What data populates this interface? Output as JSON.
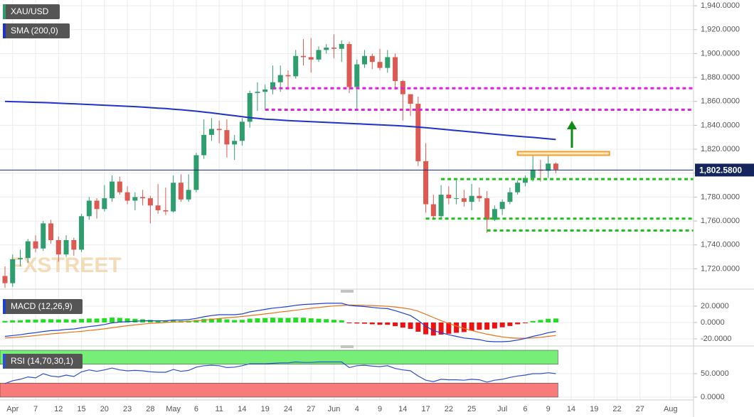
{
  "chart_data": [
    {
      "type": "candlestick",
      "title": "XAU/USD",
      "watermark": "FXSTREET",
      "categories": [
        null,
        "Apr",
        null,
        null,
        "7",
        null,
        null,
        "12",
        null,
        null,
        "15",
        null,
        null,
        "20",
        null,
        null,
        "23",
        null,
        null,
        "28",
        null,
        null,
        "May",
        null,
        null,
        "6",
        null,
        null,
        "11",
        null,
        null,
        "14",
        null,
        null,
        "19",
        null,
        null,
        "24",
        null,
        null,
        "27",
        null,
        null,
        "Jun",
        null,
        null,
        "4",
        null,
        null,
        "9",
        null,
        null,
        "14",
        null,
        null,
        "17",
        null,
        null,
        "22",
        null,
        null,
        "25",
        null,
        null,
        null,
        "Jul",
        null,
        null,
        "6",
        null,
        null,
        "9",
        null,
        null,
        "14",
        null,
        null,
        "19",
        null,
        null,
        "22",
        null,
        null,
        "27",
        null,
        null,
        null,
        "Aug",
        null
      ],
      "open": [
        1714,
        1708,
        1728,
        1729,
        1743,
        1737,
        1758,
        1744,
        1732,
        1744,
        1736,
        1764,
        1777,
        1770,
        1779,
        1793,
        1784,
        1777,
        1780,
        1779,
        1773,
        1769,
        1768,
        1792,
        1778,
        1786,
        1815,
        1832,
        1837,
        1836,
        1824,
        1827,
        1843,
        1867,
        1868,
        1870,
        1876,
        1882,
        1881,
        1898,
        1897,
        1895,
        1903,
        1905,
        1904,
        1908,
        1872,
        1891,
        1898,
        1893,
        1888,
        1897,
        1877,
        1866,
        1858,
        1810,
        1774,
        1764,
        1782,
        1779,
        1779,
        1776,
        1781,
        1779,
        1761,
        1770,
        1776,
        1784,
        1792,
        1796,
        1803,
        1802,
        1808,
        null,
        null,
        null,
        null,
        null,
        null,
        null,
        null,
        null,
        null,
        null,
        null,
        null,
        null,
        null,
        null
      ],
      "high": [
        1722,
        1732,
        1736,
        1745,
        1748,
        1760,
        1761,
        1747,
        1748,
        1746,
        1766,
        1780,
        1779,
        1790,
        1798,
        1797,
        1789,
        1784,
        1786,
        1781,
        1791,
        1788,
        1798,
        1799,
        1799,
        1817,
        1845,
        1846,
        1844,
        1845,
        1832,
        1846,
        1869,
        1876,
        1874,
        1890,
        1890,
        1886,
        1903,
        1912,
        1913,
        1906,
        1908,
        1916,
        1911,
        1910,
        1895,
        1903,
        1900,
        1904,
        1903,
        1900,
        1878,
        1866,
        1864,
        1825,
        1782,
        1790,
        1789,
        1794,
        1786,
        1791,
        1788,
        1785,
        1773,
        1778,
        1788,
        1794,
        1798,
        1815,
        1811,
        1818,
        1809,
        null,
        null,
        null,
        null,
        null,
        null,
        null,
        null,
        null,
        null,
        null,
        null,
        null,
        null,
        null,
        null
      ],
      "low": [
        1704,
        1705,
        1722,
        1725,
        1734,
        1735,
        1741,
        1726,
        1730,
        1731,
        1734,
        1761,
        1762,
        1768,
        1776,
        1782,
        1774,
        1769,
        1773,
        1758,
        1766,
        1765,
        1767,
        1776,
        1776,
        1784,
        1812,
        1827,
        1825,
        1813,
        1811,
        1823,
        1838,
        1852,
        1853,
        1866,
        1868,
        1870,
        1879,
        1890,
        1884,
        1893,
        1900,
        1896,
        1893,
        1867,
        1854,
        1888,
        1887,
        1886,
        1884,
        1870,
        1844,
        1848,
        1806,
        1767,
        1761,
        1762,
        1774,
        1774,
        1772,
        1769,
        1776,
        1750,
        1760,
        1765,
        1774,
        1782,
        1789,
        1793,
        1793,
        1796,
        1800,
        null,
        null,
        null,
        null,
        null,
        null,
        null,
        null,
        null,
        null,
        null,
        null,
        null,
        null,
        null,
        null
      ],
      "close": [
        1708,
        1728,
        1729,
        1743,
        1737,
        1758,
        1744,
        1732,
        1744,
        1736,
        1764,
        1777,
        1770,
        1779,
        1793,
        1784,
        1777,
        1780,
        1779,
        1773,
        1769,
        1768,
        1792,
        1778,
        1786,
        1815,
        1832,
        1837,
        1836,
        1824,
        1827,
        1843,
        1867,
        1868,
        1870,
        1876,
        1882,
        1881,
        1898,
        1897,
        1895,
        1903,
        1905,
        1904,
        1908,
        1872,
        1891,
        1898,
        1893,
        1888,
        1897,
        1877,
        1866,
        1858,
        1810,
        1774,
        1764,
        1782,
        1779,
        1779,
        1776,
        1781,
        1779,
        1761,
        1770,
        1776,
        1784,
        1792,
        1796,
        1803,
        1802,
        1808,
        1803,
        null,
        null,
        null,
        null,
        null,
        null,
        null,
        null,
        null,
        null,
        null,
        null,
        null,
        null,
        null,
        null
      ],
      "color_up": "#2f9e6e",
      "color_down": "#dc5a52",
      "overlay": {
        "name": "SMA (200,0)",
        "color": "#1f33c8",
        "values": [
          1860,
          1859.8,
          1859.6,
          1859.4,
          1859.2,
          1859,
          1858.8,
          1858.5,
          1858.2,
          1858,
          1857.7,
          1857.4,
          1857.1,
          1856.8,
          1856.5,
          1856.2,
          1855.9,
          1855.6,
          1855.2,
          1854.8,
          1854.4,
          1854,
          1853.5,
          1853,
          1852.4,
          1851.8,
          1851.1,
          1850.4,
          1849.6,
          1848.8,
          1848,
          1847.2,
          1846.4,
          1845.8,
          1845.2,
          1844.8,
          1844.4,
          1844,
          1843.7,
          1843.4,
          1843.1,
          1842.8,
          1842.5,
          1842.2,
          1841.9,
          1841.6,
          1841.3,
          1841,
          1840.7,
          1840.4,
          1840.1,
          1839.8,
          1839.4,
          1839,
          1838.5,
          1838,
          1837.4,
          1836.8,
          1836.2,
          1835.6,
          1835,
          1834.4,
          1833.8,
          1833.2,
          1832.6,
          1832,
          1831.4,
          1830.9,
          1830.4,
          1829.9,
          1829.3,
          1828.7,
          1828.1,
          null,
          null,
          null,
          null,
          null,
          null,
          null,
          null,
          null,
          null,
          null,
          null,
          null,
          null,
          null,
          null
        ]
      },
      "last_price": {
        "value": 1802.58,
        "label": "1,802.5800"
      },
      "levels": [
        {
          "value": 1871,
          "color": "#e020e0",
          "start": 35
        },
        {
          "value": 1853,
          "color": "#e020e0",
          "start": 34
        },
        {
          "value": 1795,
          "color": "#1fbf1f",
          "start": 57
        },
        {
          "value": 1762,
          "color": "#1fbf1f",
          "start": 55
        },
        {
          "value": 1752,
          "color": "#1fbf1f",
          "start": 63
        }
      ],
      "zone": {
        "values": [
          1815,
          1818
        ],
        "start": 67,
        "end": 79,
        "color": "#f0a030"
      },
      "ylim": [
        1704.2,
        1944.8
      ],
      "yticks": [
        {
          "value": 1720,
          "label": "1,720.0000"
        },
        {
          "value": 1740,
          "label": "1,740.0000"
        },
        {
          "value": 1760,
          "label": "1,760.0000"
        },
        {
          "value": 1780,
          "label": "1,780.0000"
        },
        {
          "value": 1800,
          "label": "1,800.0000"
        },
        {
          "value": 1820,
          "label": "1,820.0000"
        },
        {
          "value": 1840,
          "label": "1,840.0000"
        },
        {
          "value": 1860,
          "label": "1,860.0000"
        },
        {
          "value": 1880,
          "label": "1,880.0000"
        },
        {
          "value": 1900,
          "label": "1,900.0000"
        },
        {
          "value": 1920,
          "label": "1,920.0000"
        },
        {
          "value": 1940,
          "label": "1,940.0000"
        }
      ],
      "grid": true
    },
    {
      "type": "macd",
      "title": "MACD (12,26,9)",
      "macd": {
        "color": "#2040d0",
        "values": [
          -17,
          -16,
          -15,
          -13.5,
          -12.5,
          -11,
          -10,
          -9.5,
          -8.5,
          -8,
          -6.5,
          -5,
          -4,
          -2.5,
          -0.5,
          0.5,
          1,
          1.5,
          2,
          2,
          2,
          2,
          3,
          3,
          3.5,
          5,
          7,
          8.5,
          9.5,
          9.5,
          9.5,
          10.5,
          13,
          14.5,
          16,
          17.5,
          18.5,
          19.5,
          21,
          22,
          22.5,
          23,
          23.5,
          23.5,
          23.5,
          21,
          20,
          19.5,
          18.5,
          17.5,
          17,
          14.5,
          11.5,
          8.5,
          2.5,
          -4.5,
          -10,
          -12.5,
          -15,
          -17,
          -19,
          -20,
          -21,
          -23,
          -23.5,
          -23.5,
          -23,
          -21.5,
          -19.5,
          -17,
          -15,
          -12.5,
          -11,
          null,
          null,
          null,
          null,
          null,
          null,
          null,
          null,
          null,
          null,
          null,
          null,
          null,
          null,
          null,
          null
        ]
      },
      "signal": {
        "color": "#e8731a",
        "values": [
          -19,
          -18.5,
          -17.8,
          -17,
          -16,
          -15,
          -14,
          -13.2,
          -12.4,
          -11.6,
          -10.8,
          -9.8,
          -8.8,
          -7.8,
          -6.5,
          -5.2,
          -4,
          -3,
          -2,
          -1.2,
          -0.6,
          0,
          0.5,
          1,
          1.4,
          2,
          2.8,
          3.8,
          4.8,
          5.7,
          6.5,
          7.3,
          8.3,
          9.4,
          10.5,
          11.6,
          12.8,
          13.9,
          15,
          16.2,
          17.4,
          18.4,
          19.4,
          20.2,
          20.9,
          21.3,
          21.2,
          21,
          20.7,
          20.3,
          19.8,
          19,
          17.8,
          16.3,
          13.8,
          10,
          6,
          2.3,
          -1.2,
          -4.4,
          -7.3,
          -9.9,
          -12.1,
          -14.3,
          -16.1,
          -17.6,
          -18.7,
          -19.3,
          -19.3,
          -18.9,
          -18.1,
          -17,
          -15.9,
          null,
          null,
          null,
          null,
          null,
          null,
          null,
          null,
          null,
          null,
          null,
          null,
          null,
          null,
          null,
          null
        ]
      },
      "histogram": {
        "color_up": "#22dd22",
        "color_down": "#ee1111",
        "values": [
          2,
          2.5,
          2.8,
          3.5,
          3.5,
          4,
          4,
          3.7,
          3.9,
          3.6,
          4.3,
          4.8,
          4.8,
          5.3,
          6,
          5.7,
          5,
          4.5,
          4,
          3.2,
          2.6,
          2,
          2.5,
          2,
          2.1,
          3,
          4.2,
          4.7,
          4.7,
          3.8,
          3,
          3.2,
          4.7,
          5.1,
          5.5,
          5.9,
          5.7,
          5.6,
          6,
          5.8,
          5.1,
          4.6,
          4.1,
          3.3,
          2.6,
          -0.3,
          -1.2,
          -1.5,
          -2.2,
          -2.8,
          -2.8,
          -4.5,
          -6.3,
          -7.8,
          -11.3,
          -14.5,
          -16,
          -14.8,
          -13.8,
          -12.6,
          -11.7,
          -10.1,
          -8.9,
          -8.7,
          -7.4,
          -5.9,
          -4.3,
          -2.2,
          -0.2,
          1.9,
          3.1,
          4.5,
          4.9,
          null,
          null,
          null,
          null,
          null,
          null,
          null,
          null,
          null,
          null,
          null,
          null,
          null,
          null,
          null,
          null
        ]
      },
      "ylim": [
        -27,
        35.6
      ],
      "yticks": [
        {
          "value": -20,
          "label": "-20.0000"
        },
        {
          "value": 0,
          "label": "0.0000"
        },
        {
          "value": 20,
          "label": "20.0000"
        }
      ]
    },
    {
      "type": "rsi",
      "title": "RSI (14,70,30,1)",
      "color": "#2f4fd0",
      "values": [
        29,
        35,
        38,
        43,
        41,
        50,
        45,
        43,
        47,
        44,
        54,
        58,
        55,
        58,
        62,
        58,
        56,
        57,
        56,
        54,
        53,
        53,
        59,
        55,
        57,
        64,
        67,
        68,
        67,
        63,
        64,
        67,
        71,
        71,
        71,
        72,
        73,
        73,
        75,
        74,
        74,
        75,
        75,
        75,
        75,
        63,
        67,
        68,
        66,
        65,
        67,
        61,
        58,
        56,
        45,
        36,
        33,
        38,
        37,
        37,
        36,
        38,
        37,
        32,
        36,
        38,
        42,
        45,
        47,
        50,
        50,
        52,
        50,
        null,
        null,
        null,
        null,
        null,
        null,
        null,
        null,
        null,
        null,
        null,
        null,
        null,
        null,
        null,
        null
      ],
      "bands": [
        {
          "from": 70,
          "to": 100,
          "color": "#77ee77"
        },
        {
          "from": 0,
          "to": 30,
          "color": "#f77b7b"
        }
      ],
      "ylim": [
        0,
        100
      ],
      "yticks": [
        {
          "value": 0,
          "label": "0.0000"
        },
        {
          "value": 50,
          "label": "50.0000"
        }
      ]
    }
  ]
}
